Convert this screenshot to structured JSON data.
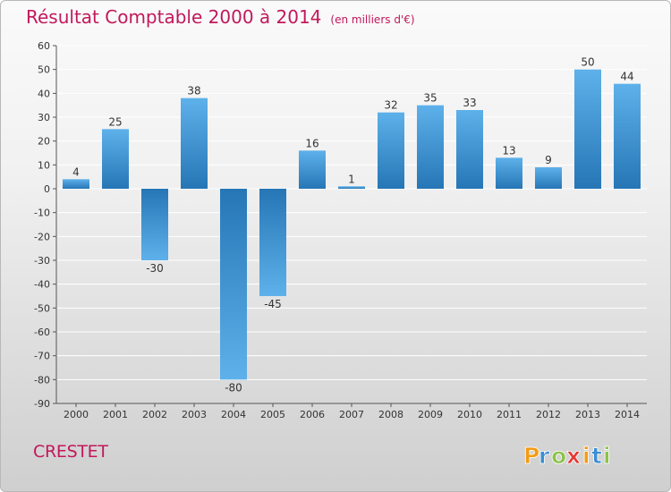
{
  "title": "Résultat Comptable 2000 à 2014",
  "subtitle": "(en milliers d'€)",
  "commune": "CRESTET",
  "brand": {
    "letters": [
      "P",
      "r",
      "o",
      "x",
      "i",
      "t",
      "i"
    ],
    "colors": [
      "#f39c12",
      "#3b8ed0",
      "#8bc34a",
      "#e53935",
      "#f39c12",
      "#3b8ed0",
      "#8bc34a"
    ]
  },
  "colors": {
    "title": "#c2185b",
    "bar_dark": "#2676b6",
    "bar_light": "#5eb1ea",
    "axis": "#444444",
    "grid": "#ffffff"
  },
  "chart_data": {
    "type": "bar",
    "categories": [
      "2000",
      "2001",
      "2002",
      "2003",
      "2004",
      "2005",
      "2006",
      "2007",
      "2008",
      "2009",
      "2010",
      "2011",
      "2012",
      "2013",
      "2014"
    ],
    "values": [
      4,
      25,
      -30,
      38,
      -80,
      -45,
      16,
      1,
      32,
      35,
      33,
      13,
      9,
      50,
      44
    ],
    "ylim": [
      -90,
      60
    ],
    "yticks": [
      60,
      50,
      40,
      30,
      20,
      10,
      0,
      -10,
      -20,
      -30,
      -40,
      -50,
      -60,
      -70,
      -80,
      -90
    ],
    "grid": true
  }
}
